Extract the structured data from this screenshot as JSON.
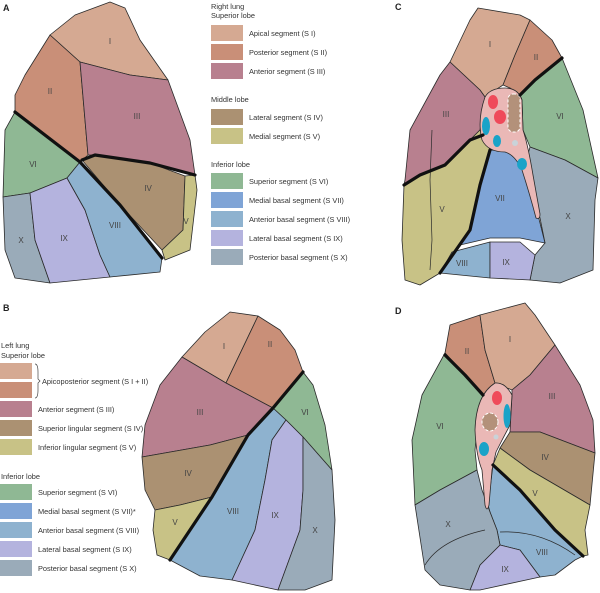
{
  "panels": {
    "a": "A",
    "b": "B",
    "c": "C",
    "d": "D"
  },
  "segment_labels": {
    "s1": "I",
    "s2": "II",
    "s3": "III",
    "s4": "IV",
    "s5": "V",
    "s6": "VI",
    "s7": "VII",
    "s8": "VIII",
    "s9": "IX",
    "s10": "X"
  },
  "colors": {
    "s1": "#d5a992",
    "s2": "#c98f78",
    "s3": "#b8808f",
    "s4": "#ab9172",
    "s5": "#c8c286",
    "s6": "#8fb894",
    "s7": "#7fa4d6",
    "s8": "#8eb2cf",
    "s9": "#b4b3de",
    "s10": "#9aabb9",
    "hilum": "#eab8b6",
    "artery": "#ef4a5a",
    "vein": "#1aa3c8",
    "bronchus": "#b3917a",
    "node": "#c9d3d9"
  },
  "legend_right": {
    "title1": "Right lung",
    "title2": "Superior lobe",
    "superior": [
      "Apical segment (S I)",
      "Posterior segment (S II)",
      "Anterior segment (S III)"
    ],
    "middle_title": "Middle lobe",
    "middle": [
      "Lateral segment (S IV)",
      "Medial segment (S V)"
    ],
    "inferior_title": "Inferior lobe",
    "inferior": [
      "Superior segment (S VI)",
      "Medial basal segment (S VII)",
      "Anterior basal segment (S VIII)",
      "Lateral basal segment (S IX)",
      "Posterior basal segment (S X)"
    ]
  },
  "legend_left": {
    "title1": "Left lung",
    "title2": "Superior lobe",
    "superior": [
      "Apicoposterior segment (S I + II)",
      "Anterior segment (S III)",
      "Superior lingular segment (S IV)",
      "Inferior lingular segment (S V)"
    ],
    "inferior_title": "Inferior lobe",
    "inferior": [
      "Superior segment (S VI)",
      "Medial basal segment (S VII)*",
      "Anterior basal segment (S VIII)",
      "Lateral basal segment (S IX)",
      "Posterior basal segment (S X)"
    ]
  }
}
